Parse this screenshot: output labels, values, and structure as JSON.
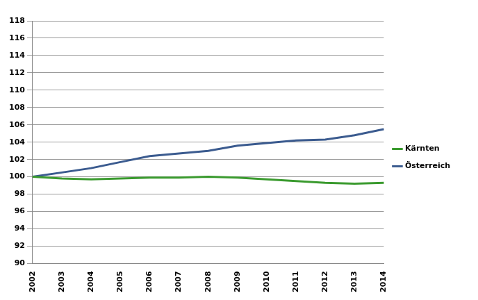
{
  "chart_data": {
    "type": "line",
    "categories": [
      "2002",
      "2003",
      "2004",
      "2005",
      "2006",
      "2007",
      "2008",
      "2009",
      "2010",
      "2011",
      "2012",
      "2013",
      "2014"
    ],
    "series": [
      {
        "name": "Kärnten",
        "color": "#3a9a2e",
        "values": [
          100,
          99.8,
          99.7,
          99.8,
          99.9,
          99.9,
          100.0,
          99.9,
          99.7,
          99.5,
          99.3,
          99.2,
          99.3
        ]
      },
      {
        "name": "Österreich",
        "color": "#3b5b8f",
        "values": [
          100,
          100.5,
          101.0,
          101.7,
          102.4,
          102.7,
          103.0,
          103.6,
          103.9,
          104.2,
          104.3,
          104.8,
          105.5
        ]
      }
    ],
    "ylim": [
      90,
      118
    ],
    "yticks": [
      90,
      92,
      94,
      96,
      98,
      100,
      102,
      104,
      106,
      108,
      110,
      112,
      114,
      116,
      118
    ],
    "grid": true,
    "legend": "right"
  }
}
